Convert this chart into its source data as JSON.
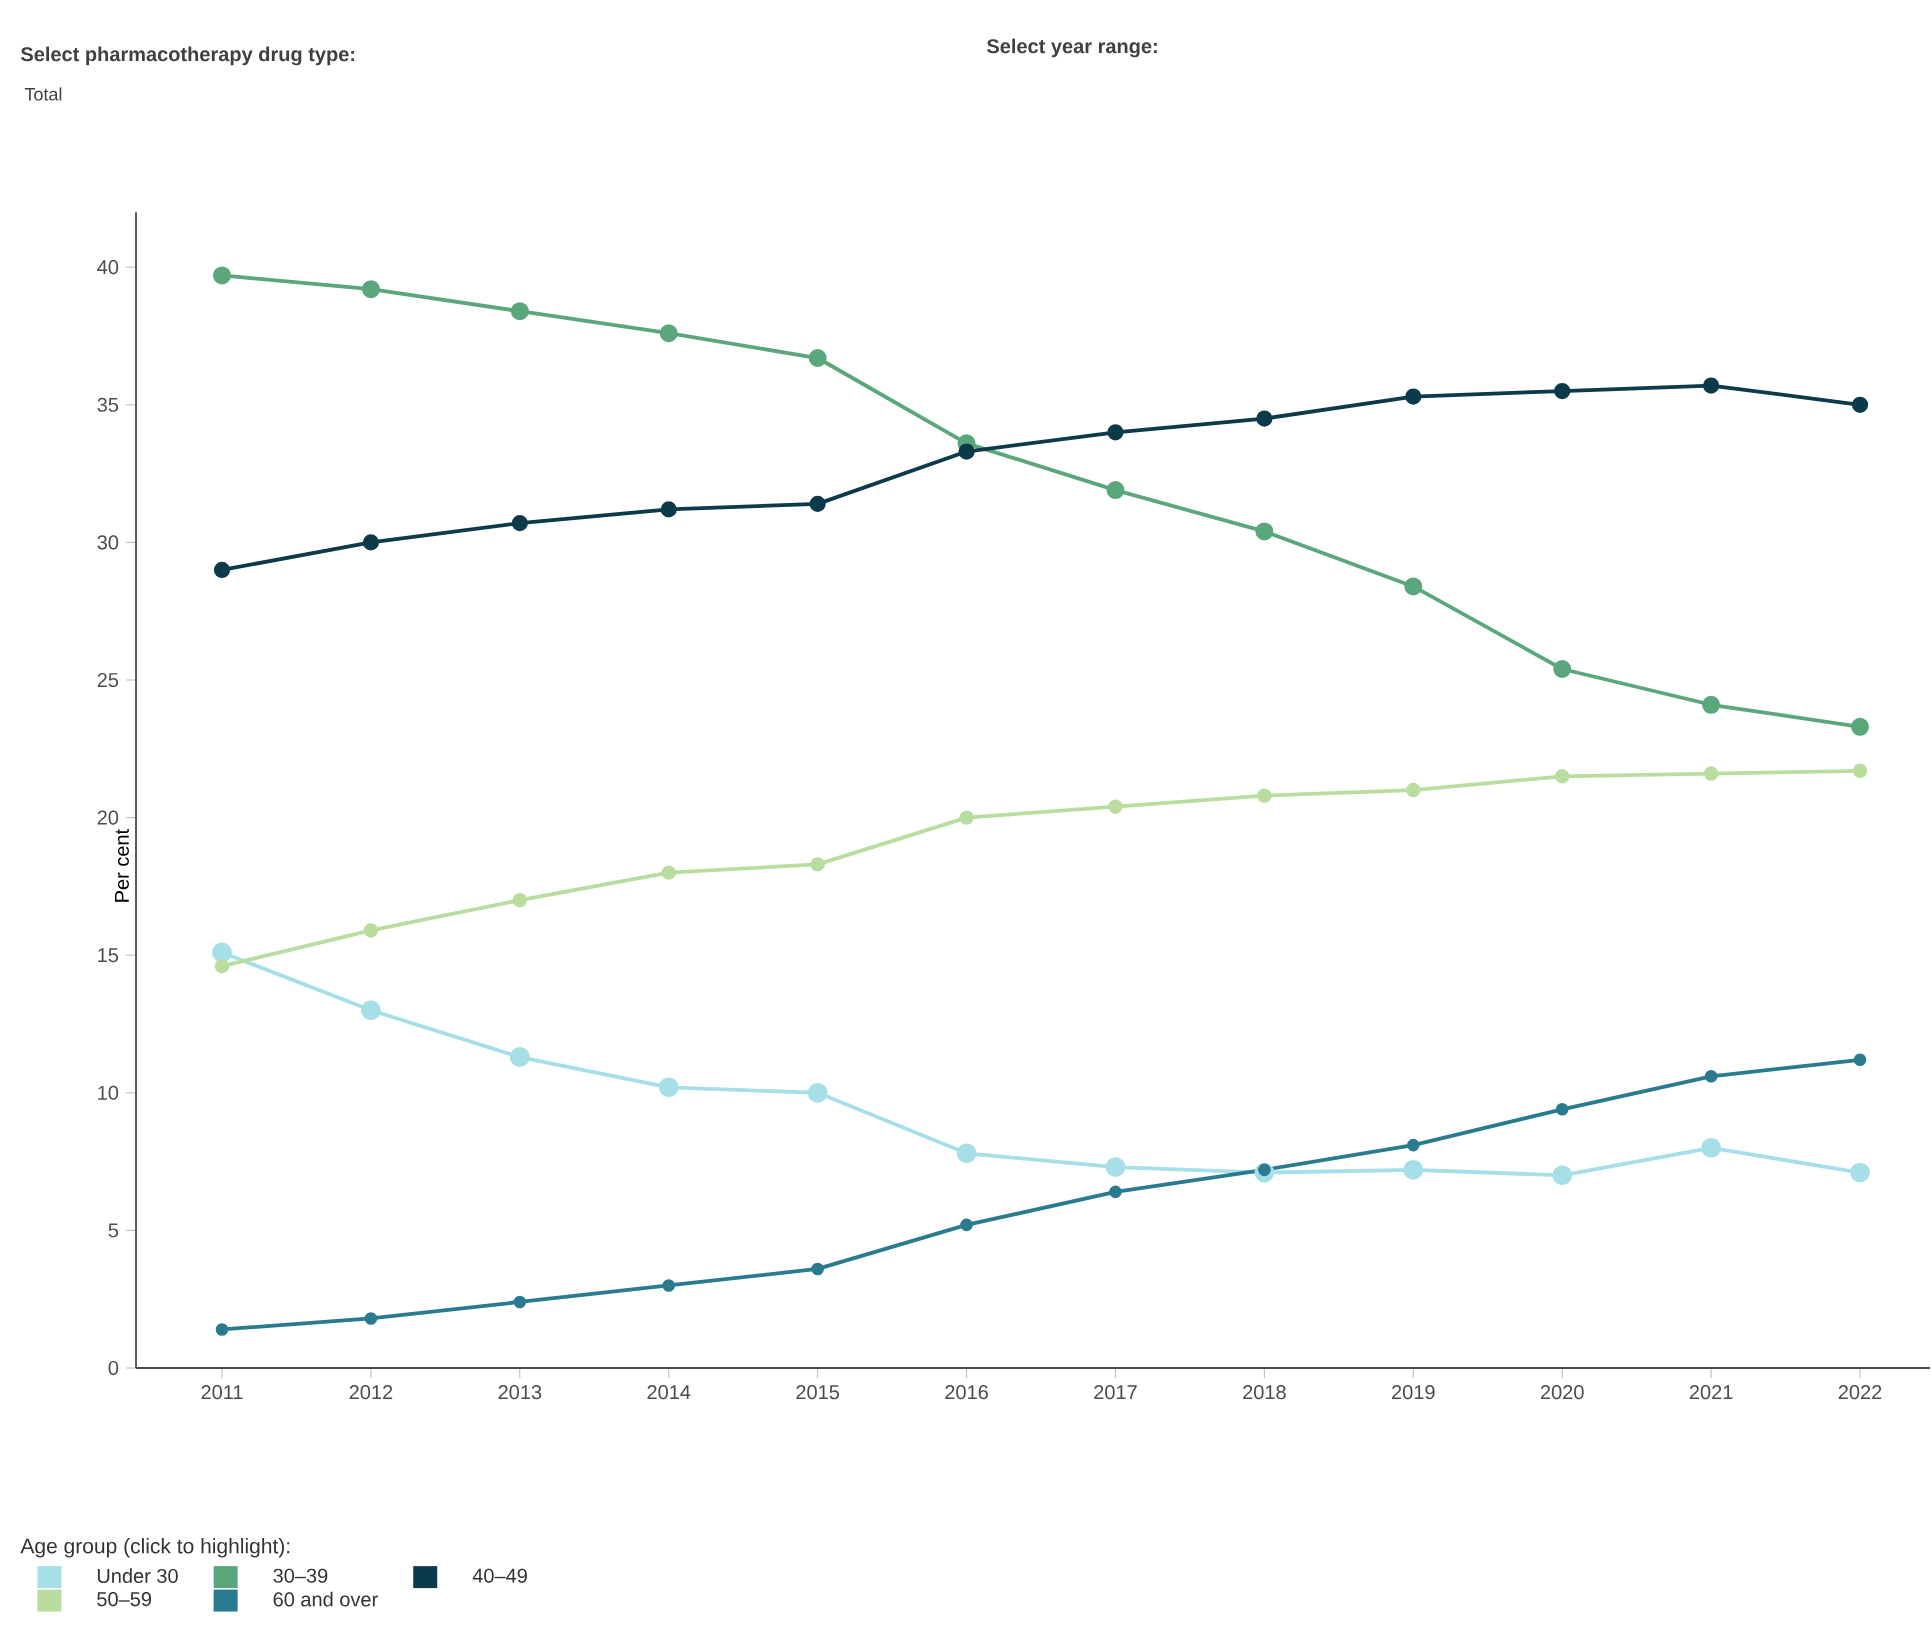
{
  "chart_data": {
    "type": "line",
    "ylabel": "Per cent",
    "legend_title": "Age group (click to highlight):",
    "annotations": [
      "Select pharmacotherapy drug type:",
      "Total",
      "Select year range:"
    ],
    "categories": [
      "2011",
      "2012",
      "2013",
      "2014",
      "2015",
      "2016",
      "2017",
      "2018",
      "2019",
      "2020",
      "2021",
      "2022"
    ],
    "series": [
      {
        "name": "Under 30",
        "color": "#a6dfe8",
        "values": [
          15.1,
          13.0,
          11.3,
          10.2,
          10.0,
          7.8,
          7.3,
          7.1,
          7.2,
          7.0,
          8.0,
          7.1
        ]
      },
      {
        "name": "30–39",
        "color": "#5aa77c",
        "values": [
          39.7,
          39.2,
          38.4,
          37.6,
          36.7,
          33.6,
          31.9,
          30.4,
          28.4,
          25.4,
          24.1,
          23.3
        ]
      },
      {
        "name": "40–49",
        "color": "#0b3a4a",
        "values": [
          29.0,
          30.0,
          30.7,
          31.2,
          31.4,
          33.3,
          34.0,
          34.5,
          35.3,
          35.5,
          35.7,
          35.0
        ]
      },
      {
        "name": "50–59",
        "color": "#b8dd9e",
        "values": [
          14.6,
          15.9,
          17.0,
          18.0,
          18.3,
          20.0,
          20.4,
          20.8,
          21.0,
          21.5,
          21.6,
          21.7
        ]
      },
      {
        "name": "60 and over",
        "color": "#2a7a90",
        "values": [
          1.4,
          1.8,
          2.4,
          3.0,
          3.6,
          5.2,
          6.4,
          7.2,
          8.1,
          9.4,
          10.6,
          11.2
        ]
      }
    ],
    "ylim": [
      0,
      42
    ],
    "yticks": [
      0,
      5,
      10,
      15,
      20,
      25,
      30,
      35,
      40
    ],
    "grid": false,
    "legend": "bottom",
    "marker": "circle",
    "line_style": "solid"
  }
}
